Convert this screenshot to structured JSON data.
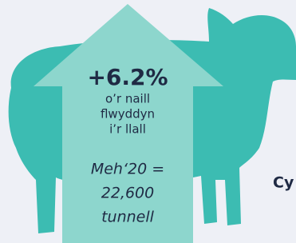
{
  "headline": "+6.2%",
  "subtitle_lines": [
    "o’r naill",
    "flwyddyn",
    "i’r llall"
  ],
  "detail_lines": [
    "Meh‘20 =",
    "22,600",
    "tunnell"
  ],
  "cut_text": "Cy"
}
